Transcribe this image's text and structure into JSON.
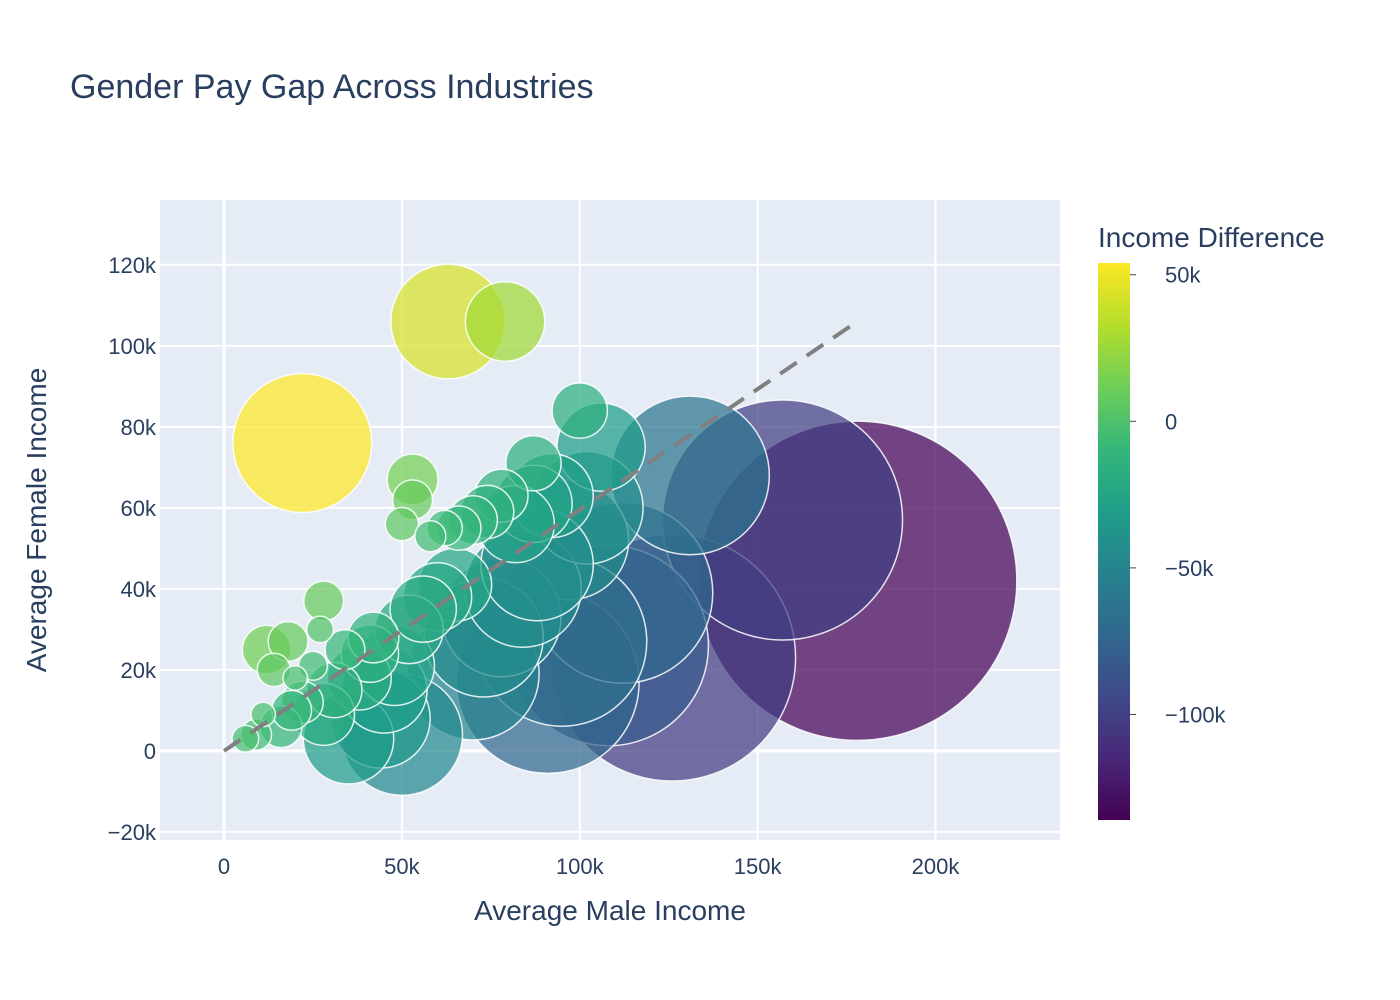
{
  "chart_data": {
    "type": "scatter",
    "title": "Gender Pay Gap Across Industries",
    "xlabel": "Average Male Income",
    "ylabel": "Average Female Income",
    "xlim": [
      -18000,
      235000
    ],
    "ylim": [
      -22000,
      136000
    ],
    "x_ticks": [
      0,
      50000,
      100000,
      150000,
      200000
    ],
    "x_tick_labels": [
      "0",
      "50k",
      "100k",
      "150k",
      "200k"
    ],
    "y_ticks": [
      -20000,
      0,
      20000,
      40000,
      60000,
      80000,
      100000,
      120000
    ],
    "y_tick_labels": [
      "−20k",
      "0",
      "20k",
      "40k",
      "60k",
      "80k",
      "100k",
      "120k"
    ],
    "grid": true,
    "bubble_sizes": "income difference magnitude",
    "reference_line": {
      "style": "dashed",
      "color": "#808080",
      "x": [
        0,
        178000
      ],
      "y": [
        0,
        106000
      ]
    },
    "colorbar": {
      "title": "Income Difference",
      "colorscale": "Viridis",
      "range": [
        -136000,
        54000
      ],
      "ticks": [
        50000,
        0,
        -50000,
        -100000
      ],
      "tick_labels": [
        "50k",
        "0",
        "−50k",
        "−100k"
      ]
    },
    "points": [
      {
        "x": 178000,
        "y": 42000,
        "diff": -136000
      },
      {
        "x": 157000,
        "y": 57000,
        "diff": -100000
      },
      {
        "x": 126000,
        "y": 23000,
        "diff": -103000
      },
      {
        "x": 131000,
        "y": 68000,
        "diff": -63000
      },
      {
        "x": 108000,
        "y": 26000,
        "diff": -82000
      },
      {
        "x": 91000,
        "y": 17000,
        "diff": -74000
      },
      {
        "x": 112000,
        "y": 39000,
        "diff": -73000
      },
      {
        "x": 95000,
        "y": 27000,
        "diff": -68000
      },
      {
        "x": 63000,
        "y": 106000,
        "diff": 43000
      },
      {
        "x": 79000,
        "y": 106000,
        "diff": 27000
      },
      {
        "x": 22000,
        "y": 76000,
        "diff": 54000
      },
      {
        "x": 53000,
        "y": 67000,
        "diff": 14000
      },
      {
        "x": 53000,
        "y": 62000,
        "diff": 9000
      },
      {
        "x": 50000,
        "y": 56000,
        "diff": 6000
      },
      {
        "x": 100000,
        "y": 84000,
        "diff": -16000
      },
      {
        "x": 106000,
        "y": 75000,
        "diff": -31000
      },
      {
        "x": 102000,
        "y": 60000,
        "diff": -42000
      },
      {
        "x": 97000,
        "y": 52000,
        "diff": -45000
      },
      {
        "x": 92000,
        "y": 63000,
        "diff": -29000
      },
      {
        "x": 87000,
        "y": 71000,
        "diff": -16000
      },
      {
        "x": 87000,
        "y": 61000,
        "diff": -26000
      },
      {
        "x": 82000,
        "y": 56000,
        "diff": -26000
      },
      {
        "x": 78000,
        "y": 63000,
        "diff": -15000
      },
      {
        "x": 74000,
        "y": 59000,
        "diff": -15000
      },
      {
        "x": 70000,
        "y": 57000,
        "diff": -13000
      },
      {
        "x": 66000,
        "y": 55000,
        "diff": -11000
      },
      {
        "x": 62000,
        "y": 55000,
        "diff": -7000
      },
      {
        "x": 58000,
        "y": 53000,
        "diff": -5000
      },
      {
        "x": 88000,
        "y": 46000,
        "diff": -42000
      },
      {
        "x": 84000,
        "y": 40000,
        "diff": -44000
      },
      {
        "x": 78000,
        "y": 33000,
        "diff": -45000
      },
      {
        "x": 73000,
        "y": 28000,
        "diff": -45000
      },
      {
        "x": 70000,
        "y": 19000,
        "diff": -51000
      },
      {
        "x": 65000,
        "y": 41000,
        "diff": -24000
      },
      {
        "x": 60000,
        "y": 38000,
        "diff": -22000
      },
      {
        "x": 56000,
        "y": 35000,
        "diff": -21000
      },
      {
        "x": 52000,
        "y": 30000,
        "diff": -22000
      },
      {
        "x": 50000,
        "y": 4000,
        "diff": -46000
      },
      {
        "x": 48000,
        "y": 21000,
        "diff": -27000
      },
      {
        "x": 45000,
        "y": 15000,
        "diff": -30000
      },
      {
        "x": 44000,
        "y": 8000,
        "diff": -36000
      },
      {
        "x": 42000,
        "y": 28000,
        "diff": -14000
      },
      {
        "x": 41000,
        "y": 24000,
        "diff": -17000
      },
      {
        "x": 38000,
        "y": 18000,
        "diff": -20000
      },
      {
        "x": 35000,
        "y": 3000,
        "diff": -32000
      },
      {
        "x": 34000,
        "y": 25000,
        "diff": -9000
      },
      {
        "x": 31000,
        "y": 15000,
        "diff": -16000
      },
      {
        "x": 28000,
        "y": 9000,
        "diff": -19000
      },
      {
        "x": 28000,
        "y": 37000,
        "diff": 9000
      },
      {
        "x": 27000,
        "y": 30000,
        "diff": 3000
      },
      {
        "x": 25000,
        "y": 21000,
        "diff": -4000
      },
      {
        "x": 22000,
        "y": 12000,
        "diff": -10000
      },
      {
        "x": 20000,
        "y": 18000,
        "diff": -2000
      },
      {
        "x": 19000,
        "y": 10000,
        "diff": -9000
      },
      {
        "x": 18000,
        "y": 27000,
        "diff": 9000
      },
      {
        "x": 16000,
        "y": 6000,
        "diff": -10000
      },
      {
        "x": 14000,
        "y": 20000,
        "diff": 6000
      },
      {
        "x": 12000,
        "y": 25000,
        "diff": 13000
      },
      {
        "x": 11000,
        "y": 9000,
        "diff": -2000
      },
      {
        "x": 9000,
        "y": 4000,
        "diff": -5000
      },
      {
        "x": 6000,
        "y": 3000,
        "diff": -3000
      }
    ]
  }
}
